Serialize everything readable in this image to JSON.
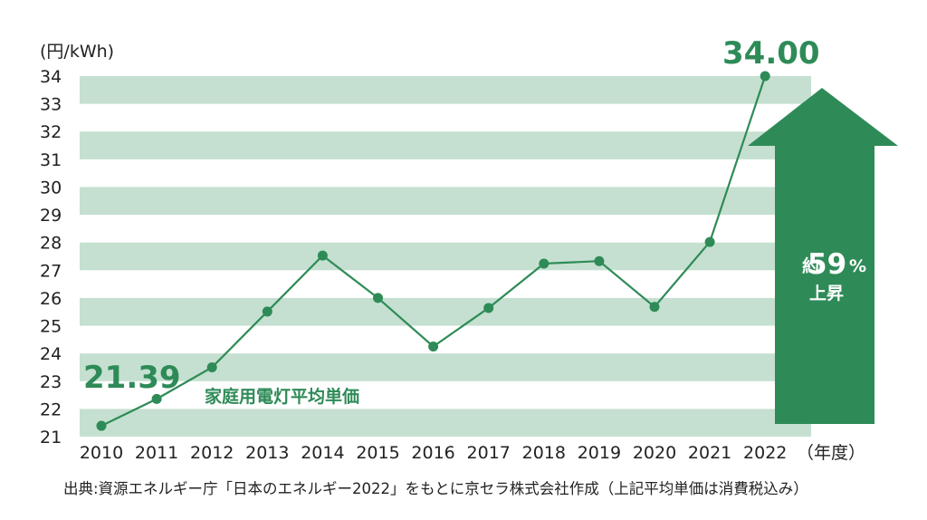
{
  "chart_data": {
    "type": "line",
    "unit_label": "(円/kWh)",
    "x_axis_suffix": "（年度）",
    "categories": [
      "2010",
      "2011",
      "2012",
      "2013",
      "2014",
      "2015",
      "2016",
      "2017",
      "2018",
      "2019",
      "2020",
      "2021",
      "2022"
    ],
    "series": [
      {
        "name": "家庭用電灯平均単価",
        "values": [
          21.39,
          22.36,
          23.5,
          25.51,
          27.53,
          26.0,
          24.25,
          25.64,
          27.24,
          27.33,
          25.68,
          28.02,
          34.0
        ]
      }
    ],
    "ylim": [
      21,
      34
    ],
    "yticks": [
      34,
      33,
      32,
      31,
      30,
      29,
      28,
      27,
      26,
      25,
      24,
      23,
      22,
      21
    ],
    "callouts": {
      "start": "21.39",
      "end": "34.00"
    },
    "increase": {
      "prefix": "約",
      "value": "59",
      "unit": "%",
      "suffix": "上昇"
    },
    "colors": {
      "line": "#2e8b57",
      "band": "#c5e0d0",
      "arrow": "#2e8b57"
    },
    "grid": "alternating horizontal bands"
  },
  "source_note": "出典:資源エネルギー庁「日本のエネルギー2022」をもとに京セラ株式会社作成（上記平均単価は消費税込み）"
}
